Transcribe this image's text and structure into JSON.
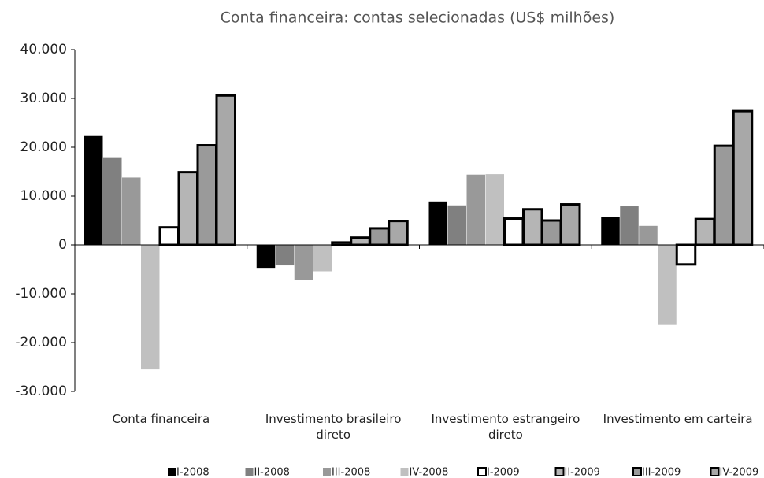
{
  "chart_data": {
    "type": "bar",
    "title": "Conta financeira: contas selecionadas (US$ milhões)",
    "categories": [
      "Conta financeira",
      "Investimento brasileiro direto",
      "Investimento estrangeiro direto",
      "Investimento em carteira"
    ],
    "series": [
      {
        "name": "I-2008",
        "color": "#000000",
        "values": [
          22300,
          -4700,
          8900,
          5800
        ]
      },
      {
        "name": "II-2008",
        "color": "#808080",
        "values": [
          17800,
          -4200,
          8100,
          7900
        ]
      },
      {
        "name": "III-2008",
        "color": "#999999",
        "values": [
          13800,
          -7200,
          14400,
          3900
        ]
      },
      {
        "name": "IV-2008",
        "color": "#c0c0c0",
        "values": [
          -25500,
          -5400,
          14500,
          -16400
        ]
      },
      {
        "name": "I-2009",
        "color": "#ffffff",
        "edgecolor": "#000000",
        "values": [
          3600,
          500,
          5400,
          -4000
        ]
      },
      {
        "name": "II-2009",
        "color": "#b5b5b5",
        "edgecolor": "#000000",
        "values": [
          14900,
          1500,
          7300,
          5300
        ]
      },
      {
        "name": "III-2009",
        "color": "#9a9a9a",
        "edgecolor": "#000000",
        "values": [
          20400,
          3400,
          5000,
          20300
        ]
      },
      {
        "name": "IV-2009",
        "color": "#a8a8a8",
        "edgecolor": "#000000",
        "values": [
          30600,
          4900,
          8300,
          27400
        ]
      }
    ],
    "ylim": [
      -30000,
      40000
    ],
    "yticks": [
      {
        "value": -30000,
        "label": "-30.000"
      },
      {
        "value": -20000,
        "label": "-20.000"
      },
      {
        "value": -10000,
        "label": "-10.000"
      },
      0,
      {
        "value": 10000,
        "label": "10.000"
      },
      {
        "value": 20000,
        "label": "20.000"
      },
      {
        "value": 30000,
        "label": "30.000"
      },
      {
        "value": 40000,
        "label": "40.000"
      }
    ],
    "legend": "bottom",
    "grid": false
  }
}
